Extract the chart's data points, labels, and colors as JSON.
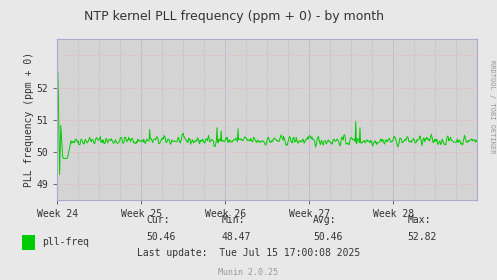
{
  "title": "NTP kernel PLL frequency (ppm + 0) - by month",
  "ylabel": "PLL frequency (ppm + 0)",
  "bg_color": "#e8e8e8",
  "plot_bg_color": "#d4d4d4",
  "line_color": "#00cc00",
  "legend_box_color": "#00cc00",
  "grid_color_h": "#ffaaaa",
  "grid_color_v": "#aaaacc",
  "spine_color": "#aaaacc",
  "text_color": "#333333",
  "rrdtool_color": "#999999",
  "munin_color": "#999999",
  "ylim": [
    48.5,
    53.5
  ],
  "yticks": [
    49,
    50,
    51,
    52
  ],
  "week_labels": [
    "Week 24",
    "Week 25",
    "Week 26",
    "Week 27",
    "Week 28"
  ],
  "cur": "50.46",
  "min": "48.47",
  "avg": "50.46",
  "max": "52.82",
  "last_update": "Tue Jul 15 17:00:08 2025",
  "legend_label": "pll-freq",
  "munin_label": "Munin 2.0.25",
  "rrdtool_label": "RRDTOOL / TOBI OETIKER",
  "title_fontsize": 9,
  "axis_fontsize": 7,
  "legend_fontsize": 7,
  "stats_fontsize": 7,
  "munin_fontsize": 6,
  "rrdtool_fontsize": 5
}
